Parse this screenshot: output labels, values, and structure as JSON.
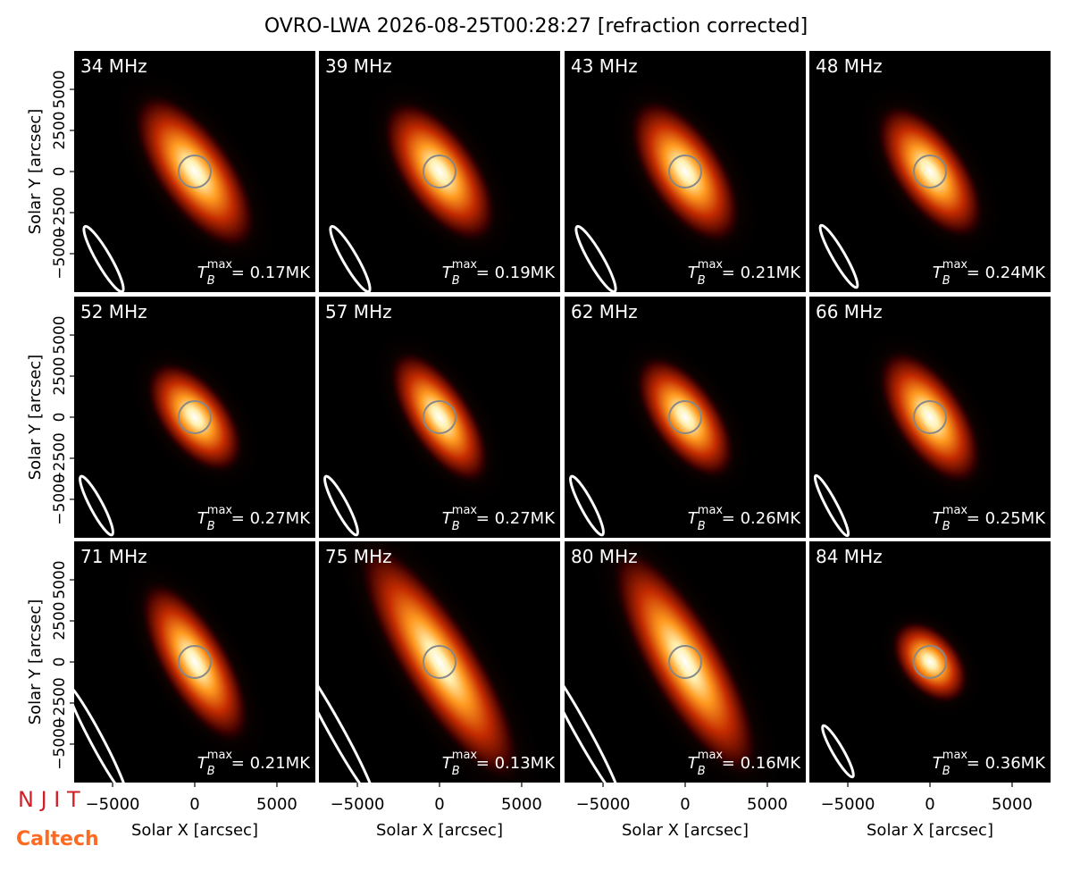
{
  "chart_data": {
    "type": "image",
    "title": "OVRO-LWA 2026-08-25T00:28:27 [refraction corrected]",
    "xlabel": "Solar X [arcsec]",
    "ylabel": "Solar Y [arcsec]",
    "xlim": [
      -7340,
      7340
    ],
    "ylim": [
      -7340,
      7340
    ],
    "xticks": [
      {
        "value": -5000,
        "label": "−5000"
      },
      0,
      5000
    ],
    "yticks": [
      {
        "value": -5000,
        "label": "−5000"
      },
      {
        "value": -2500,
        "label": "−2500"
      },
      0,
      2500,
      5000
    ],
    "tmax_symbol": {
      "base": "T",
      "sub": "B",
      "sup": "max"
    },
    "panels": [
      {
        "label": "34 MHz",
        "tmax": "= 0.17MK"
      },
      {
        "label": "39 MHz",
        "tmax": "= 0.19MK"
      },
      {
        "label": "43 MHz",
        "tmax": "= 0.21MK"
      },
      {
        "label": "48 MHz",
        "tmax": "= 0.24MK"
      },
      {
        "label": "52 MHz",
        "tmax": "= 0.27MK"
      },
      {
        "label": "57 MHz",
        "tmax": "= 0.27MK"
      },
      {
        "label": "62 MHz",
        "tmax": "= 0.26MK"
      },
      {
        "label": "66 MHz",
        "tmax": "= 0.25MK"
      },
      {
        "label": "71 MHz",
        "tmax": "= 0.21MK"
      },
      {
        "label": "75 MHz",
        "tmax": "= 0.13MK"
      },
      {
        "label": "80 MHz",
        "tmax": "= 0.16MK"
      },
      {
        "label": "84 MHz",
        "tmax": "= 0.36MK"
      }
    ]
  },
  "logos": {
    "njit": "N J I T",
    "caltech": "Caltech"
  }
}
